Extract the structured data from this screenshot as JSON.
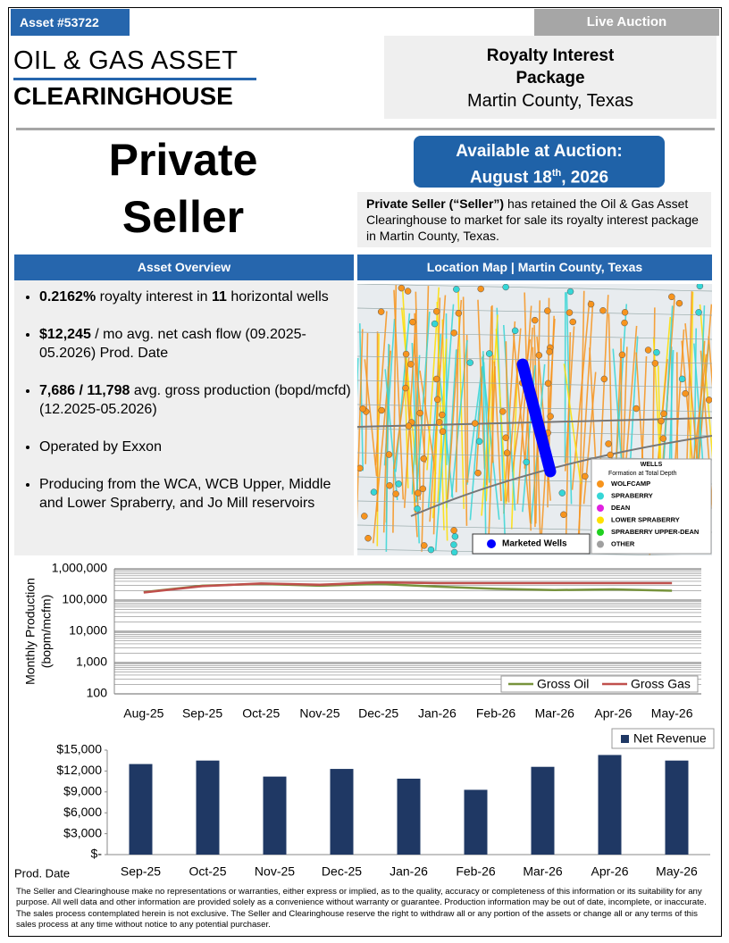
{
  "header": {
    "asset": "Asset #53722",
    "status": "Live Auction"
  },
  "logo": {
    "line1": "OIL & GAS ASSET",
    "line2": "CLEARINGHOUSE"
  },
  "package": {
    "title": "Royalty Interest Package",
    "location": "Martin County, Texas"
  },
  "seller": "Private Seller",
  "auction": {
    "line1": "Available at Auction:",
    "date_main": "August 18",
    "date_suffix": "th",
    "date_year": ", 2026"
  },
  "intro": {
    "bold": "Private Seller (“Seller”)",
    "text": " has retained the Oil & Gas Asset Clearinghouse to market for sale its royalty interest package in Martin County, Texas."
  },
  "overview": {
    "heading": "Asset Overview",
    "bullets": [
      [
        {
          "text": "0.2162%",
          "bold": true
        },
        {
          "text": " royalty interest in "
        },
        {
          "text": "11",
          "bold": true
        },
        {
          "text": " horizontal wells"
        }
      ],
      [
        {
          "text": "$12,245",
          "bold": true
        },
        {
          "text": " / mo avg. net cash flow (09.2025-05.2026) Prod. Date"
        }
      ],
      [
        {
          "text": "7,686 / 11,798",
          "bold": true
        },
        {
          "text": " avg. gross production (bopd/mcfd) (12.2025-05.2026)"
        }
      ],
      [
        {
          "text": "Operated by Exxon"
        }
      ],
      [
        {
          "text": "Producing from the WCA, WCB Upper, Middle and Lower Spraberry, and Jo Mill reservoirs"
        }
      ]
    ]
  },
  "map": {
    "heading": "Location Map | Martin County, Texas",
    "legend_title": "WELLS",
    "legend_subtitle": "Formation at Total Depth",
    "formations": [
      {
        "name": "WOLFCAMP",
        "color": "#f7941d"
      },
      {
        "name": "SPRABERRY",
        "color": "#36d6d6"
      },
      {
        "name": "DEAN",
        "color": "#e020e0"
      },
      {
        "name": "LOWER SPRABERRY",
        "color": "#ffe000"
      },
      {
        "name": "SPRABERRY UPPER-DEAN",
        "color": "#20d020"
      },
      {
        "name": "OTHER",
        "color": "#a0a0a0"
      }
    ],
    "marketed_label": "Marketed Wells",
    "marketed_color": "#0000ff"
  },
  "chart_data": [
    {
      "type": "line",
      "ylabel": [
        "Monthly  Production",
        "(bopm/mcfm)"
      ],
      "log_scale": true,
      "grid": true,
      "legend": "bottom-right",
      "categories": [
        "Aug-25",
        "Sep-25",
        "Oct-25",
        "Nov-25",
        "Dec-25",
        "Jan-26",
        "Feb-26",
        "Mar-26",
        "Apr-26",
        "May-26"
      ],
      "series": [
        {
          "name": "Gross Oil",
          "color": "#77933c",
          "values": [
            180000,
            290000,
            330000,
            290000,
            330000,
            270000,
            230000,
            210000,
            220000,
            200000
          ]
        },
        {
          "name": "Gross Gas",
          "color": "#c0504d",
          "values": [
            175000,
            280000,
            340000,
            310000,
            370000,
            350000,
            350000,
            350000,
            350000,
            350000
          ]
        }
      ],
      "ylim": [
        100,
        1000000
      ],
      "yticks": [
        100,
        {
          "value": 1000,
          "label": "1,000"
        },
        {
          "value": 10000,
          "label": "10,000"
        },
        {
          "value": 100000,
          "label": "100,000"
        },
        {
          "value": 1000000,
          "label": "1,000,000"
        }
      ]
    },
    {
      "type": "bar",
      "xlabel": "Prod. Date",
      "legend": "top-right",
      "categories": [
        "Sep-25",
        "Oct-25",
        "Nov-25",
        "Dec-25",
        "Jan-26",
        "Feb-26",
        "Mar-26",
        "Apr-26",
        "May-26"
      ],
      "series": [
        {
          "name": "Net Revenue",
          "color": "#1f3864",
          "values": [
            13000,
            13500,
            11200,
            12300,
            10900,
            9300,
            12600,
            14300,
            13500
          ]
        }
      ],
      "ylim": [
        0,
        15000
      ],
      "yticks": [
        {
          "value": 0,
          "label": "$-"
        },
        {
          "value": 3000,
          "label": "$3,000"
        },
        {
          "value": 6000,
          "label": "$6,000"
        },
        {
          "value": 9000,
          "label": "$9,000"
        },
        {
          "value": 12000,
          "label": "$12,000"
        },
        {
          "value": 15000,
          "label": "$15,000"
        }
      ]
    }
  ],
  "disclaimer": "The Seller and Clearinghouse make no representations or warranties, either express or implied, as to the quality, accuracy or completeness of this information or its suitability for any purpose. All well data and other information are provided solely as a convenience without warranty or guarantee. Production information may be out of date, incomplete, or inaccurate. The sales process contemplated herein is not exclusive.  The Seller and Clearinghouse reserve the right to withdraw all or any portion of the assets or change all or any terms of this sales process at any time without notice to any potential purchaser."
}
